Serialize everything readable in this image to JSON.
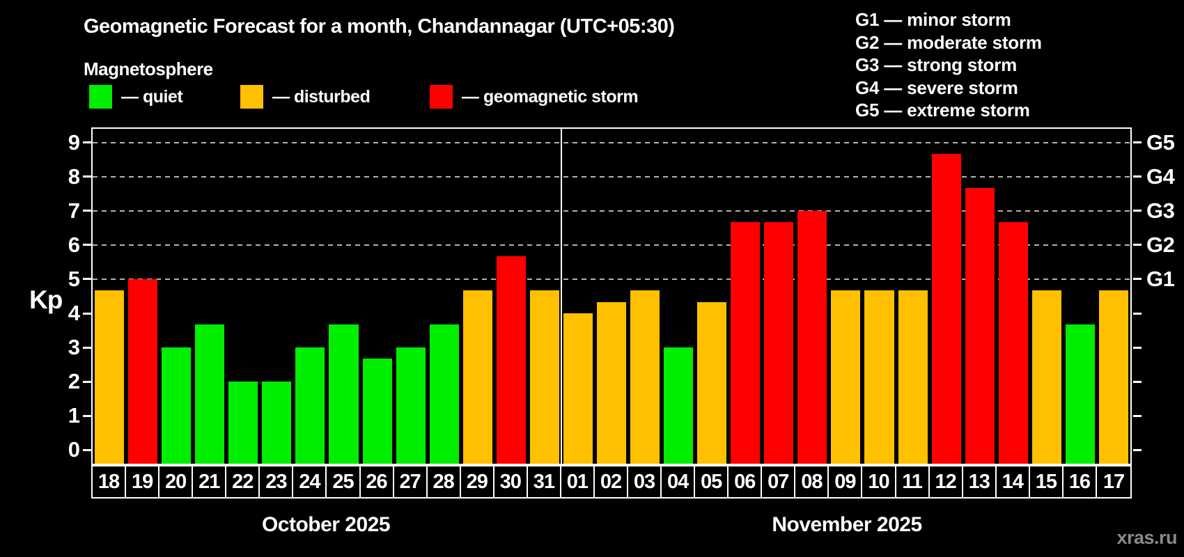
{
  "title": "Geomagnetic Forecast for a month, Chandannagar (UTC+05:30)",
  "subtitle": "Magnetosphere",
  "legend": {
    "items": [
      {
        "status": "quiet",
        "label": "— quiet",
        "color": "#00ee00"
      },
      {
        "status": "disturbed",
        "label": "— disturbed",
        "color": "#ffc000"
      },
      {
        "status": "storm",
        "label": "— geomagnetic storm",
        "color": "#ff0000"
      }
    ]
  },
  "storm_scale_legend": [
    {
      "text": "G1 — minor storm"
    },
    {
      "text": "G2 — moderate storm"
    },
    {
      "text": "G3 — strong storm"
    },
    {
      "text": "G4 — severe storm"
    },
    {
      "text": "G5 — extreme storm"
    }
  ],
  "watermark": "xras.ru",
  "chart_data": {
    "type": "bar",
    "title": "Geomagnetic Forecast for a month, Chandannagar (UTC+05:30)",
    "ylabel": "Kp",
    "ylim": [
      -0.4,
      9.4
    ],
    "yticks": [
      0,
      1,
      2,
      3,
      4,
      5,
      6,
      7,
      8,
      9
    ],
    "gridlines_at": [
      5,
      6,
      7,
      8,
      9
    ],
    "grid": "dashed horizontal at storm levels only",
    "legend_position": "top",
    "right_axis_labels": [
      {
        "value": 5,
        "label": "G1"
      },
      {
        "value": 6,
        "label": "G2"
      },
      {
        "value": 7,
        "label": "G3"
      },
      {
        "value": 8,
        "label": "G4"
      },
      {
        "value": 9,
        "label": "G5"
      }
    ],
    "months": [
      {
        "label": "October 2025",
        "days": 14
      },
      {
        "label": "November 2025",
        "days": 17
      }
    ],
    "categories": [
      "18",
      "19",
      "20",
      "21",
      "22",
      "23",
      "24",
      "25",
      "26",
      "27",
      "28",
      "29",
      "30",
      "31",
      "01",
      "02",
      "03",
      "04",
      "05",
      "06",
      "07",
      "08",
      "09",
      "10",
      "11",
      "12",
      "13",
      "14",
      "15",
      "16",
      "17"
    ],
    "values": [
      4.67,
      5,
      3,
      3.67,
      2,
      2,
      3,
      3.67,
      2.67,
      3,
      3.67,
      4.67,
      5.67,
      4.67,
      4,
      4.33,
      4.67,
      3,
      4.33,
      6.67,
      6.67,
      7,
      4.67,
      4.67,
      4.67,
      8.67,
      7.67,
      6.67,
      4.67,
      3.67,
      4.67
    ],
    "statuses": [
      "disturbed",
      "storm",
      "quiet",
      "quiet",
      "quiet",
      "quiet",
      "quiet",
      "quiet",
      "quiet",
      "quiet",
      "quiet",
      "disturbed",
      "storm",
      "disturbed",
      "disturbed",
      "disturbed",
      "disturbed",
      "quiet",
      "disturbed",
      "storm",
      "storm",
      "storm",
      "disturbed",
      "disturbed",
      "disturbed",
      "storm",
      "storm",
      "storm",
      "disturbed",
      "quiet",
      "disturbed"
    ],
    "colors_by_status": {
      "quiet": "#00ee00",
      "disturbed": "#ffc000",
      "storm": "#ff0000"
    }
  }
}
